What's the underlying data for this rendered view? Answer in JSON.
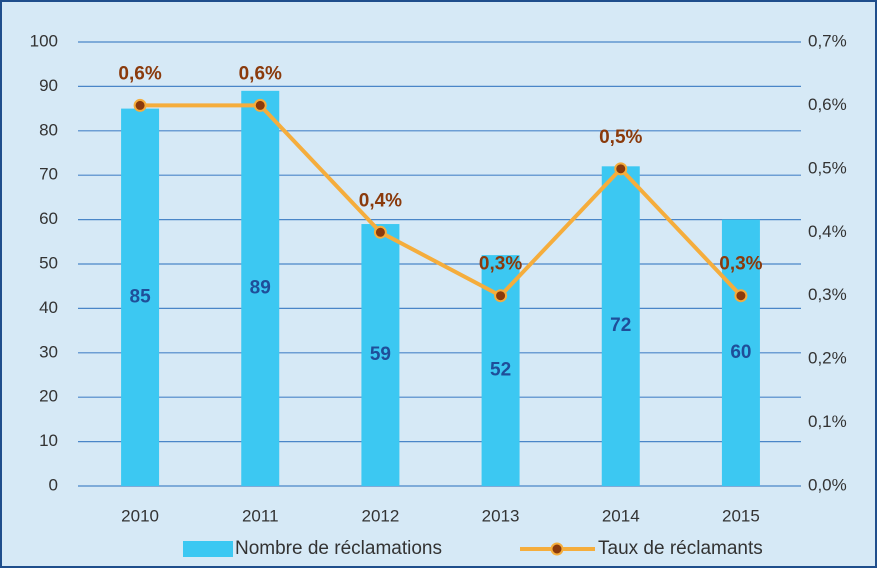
{
  "chart_data": {
    "type": "bar",
    "categories": [
      "2010",
      "2011",
      "2012",
      "2013",
      "2014",
      "2015"
    ],
    "series": [
      {
        "name": "Nombre de réclamations",
        "type": "bar",
        "color": "#3cc8f2",
        "values": [
          85,
          89,
          59,
          52,
          72,
          60
        ]
      },
      {
        "name": "Taux de réclamants",
        "type": "line",
        "axis": "y2",
        "color": "#f5ad3c",
        "marker_color": "#8a3a0c",
        "values": [
          0.6,
          0.6,
          0.4,
          0.3,
          0.5,
          0.3
        ],
        "value_labels": [
          "0,6%",
          "0,6%",
          "0,4%",
          "0,3%",
          "0,5%",
          "0,3%"
        ]
      }
    ],
    "ylim": [
      0,
      100
    ],
    "yticks": [
      0,
      10,
      20,
      30,
      40,
      50,
      60,
      70,
      80,
      90,
      100
    ],
    "y2lim": [
      0,
      0.7
    ],
    "y2ticks": [
      {
        "value": 0,
        "label": "0,0%"
      },
      {
        "value": 0.1,
        "label": "0,1%"
      },
      {
        "value": 0.2,
        "label": "0,2%"
      },
      {
        "value": 0.3,
        "label": "0,3%"
      },
      {
        "value": 0.4,
        "label": "0,4%"
      },
      {
        "value": 0.5,
        "label": "0,5%"
      },
      {
        "value": 0.6,
        "label": "0,6%"
      },
      {
        "value": 0.7,
        "label": "0,7%"
      }
    ],
    "grid": true,
    "legend": "bottom"
  }
}
